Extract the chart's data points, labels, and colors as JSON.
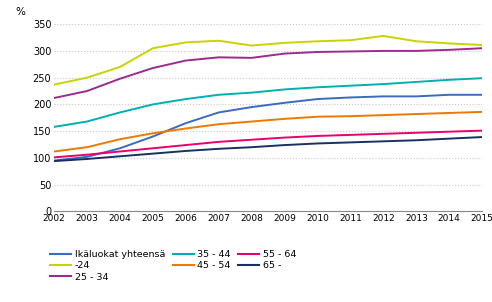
{
  "years": [
    2002,
    2003,
    2004,
    2005,
    2006,
    2007,
    2008,
    2009,
    2010,
    2011,
    2012,
    2013,
    2014,
    2015
  ],
  "series": {
    "Ikäluokat yhteensä": {
      "values": [
        95,
        102,
        118,
        140,
        165,
        185,
        195,
        203,
        210,
        213,
        215,
        215,
        218,
        218
      ],
      "color": "#3a6bbf",
      "lw": 1.5
    },
    "-24": {
      "values": [
        237,
        250,
        270,
        305,
        316,
        319,
        310,
        315,
        318,
        320,
        328,
        318,
        314,
        311
      ],
      "color": "#c8d400",
      "lw": 1.5
    },
    "25 - 34": {
      "values": [
        212,
        225,
        248,
        268,
        282,
        288,
        287,
        295,
        298,
        299,
        300,
        300,
        302,
        305
      ],
      "color": "#9b2c8e",
      "lw": 1.5
    },
    "35 - 44": {
      "values": [
        158,
        168,
        185,
        200,
        210,
        218,
        222,
        228,
        232,
        235,
        238,
        242,
        246,
        249
      ],
      "color": "#00b0b0",
      "lw": 1.5
    },
    "45 - 54": {
      "values": [
        112,
        120,
        135,
        146,
        155,
        163,
        168,
        173,
        177,
        178,
        180,
        182,
        184,
        186
      ],
      "color": "#f07800",
      "lw": 1.5
    },
    "55 - 64": {
      "values": [
        101,
        106,
        112,
        118,
        124,
        130,
        134,
        138,
        141,
        143,
        145,
        147,
        149,
        151
      ],
      "color": "#e8006e",
      "lw": 1.5
    },
    "65 -": {
      "values": [
        94,
        98,
        103,
        108,
        113,
        117,
        120,
        124,
        127,
        129,
        131,
        133,
        136,
        139
      ],
      "color": "#1a3060",
      "lw": 1.5
    }
  },
  "ylabel": "%",
  "ylim": [
    0,
    350
  ],
  "yticks": [
    0,
    50,
    100,
    150,
    200,
    250,
    300,
    350
  ],
  "bg_color": "#ffffff",
  "grid_color": "#c8c8c8",
  "legend_order": [
    "Ikäluokat yhteensä",
    "-24",
    "25 - 34",
    "35 - 44",
    "45 - 54",
    "55 - 64",
    "65 -"
  ]
}
